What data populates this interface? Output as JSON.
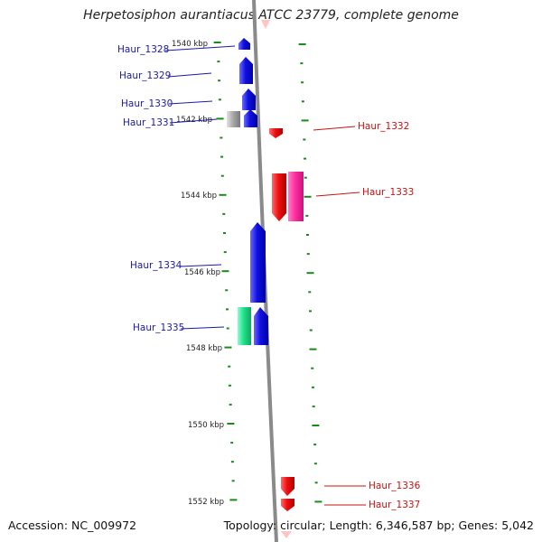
{
  "title": "Herpetosiphon aurantiacus ATCC 23779, complete genome",
  "accession_text": "Accession: NC_009972",
  "topology_text": "Topology: circular; Length: 6,346,587 bp; Genes: 5,042",
  "colors": {
    "forward_gene": "#1010e0",
    "reverse_gene": "#ee1010",
    "pseudo_gene": "#aaaaaa",
    "rna_gene": "#22e08a",
    "pink_gene": "#ff2ea0",
    "tick": "#1a8a1a",
    "backbone": "#888888",
    "forward_label": "#1a1aaa",
    "reverse_label": "#cc1111"
  },
  "axis": {
    "tick_labels": [
      "1540 kbp",
      "1542 kbp",
      "1544 kbp",
      "1546 kbp",
      "1548 kbp",
      "1550 kbp",
      "1552 kbp"
    ]
  },
  "genes": [
    {
      "label": "Haur_1328",
      "strand": "forward",
      "color": "forward_gene"
    },
    {
      "label": "Haur_1329",
      "strand": "forward",
      "color": "forward_gene"
    },
    {
      "label": "Haur_1330",
      "strand": "forward",
      "color": "forward_gene"
    },
    {
      "label": "Haur_1331",
      "strand": "forward",
      "color": "forward_gene"
    },
    {
      "label": "Haur_1332",
      "strand": "reverse",
      "color": "reverse_gene"
    },
    {
      "label": "Haur_1333",
      "strand": "reverse",
      "color": "reverse_gene"
    },
    {
      "label": "Haur_1334",
      "strand": "forward",
      "color": "forward_gene"
    },
    {
      "label": "Haur_1335",
      "strand": "forward",
      "color": "forward_gene"
    },
    {
      "label": "Haur_1336",
      "strand": "reverse",
      "color": "reverse_gene"
    },
    {
      "label": "Haur_1337",
      "strand": "reverse",
      "color": "reverse_gene"
    }
  ]
}
